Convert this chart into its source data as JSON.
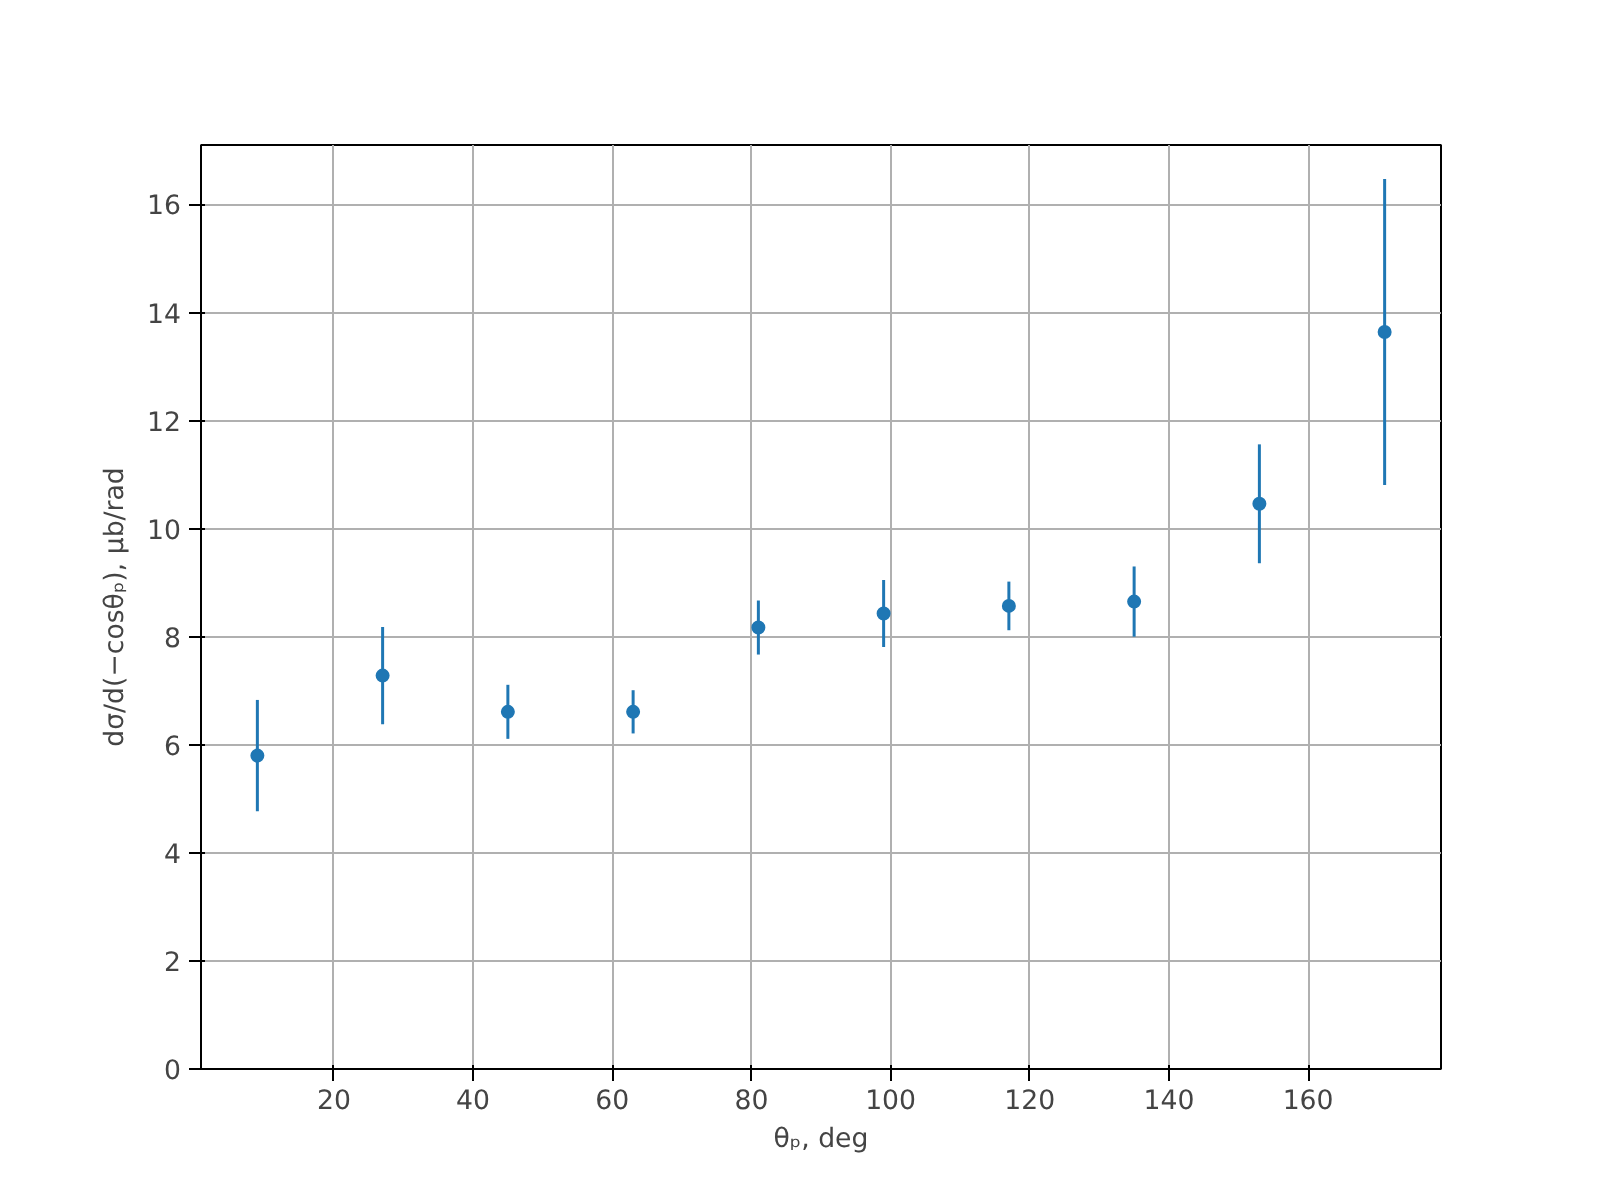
{
  "chart_data": {
    "type": "scatter",
    "xlabel": "θₚ, deg",
    "ylabel": "dσ/d(−cosθₚ), μb/rad",
    "x": [
      9,
      27,
      45,
      63,
      81,
      99,
      117,
      135,
      153,
      171
    ],
    "series": [
      {
        "color": "#1f77b4",
        "values": [
          5.8,
          7.28,
          6.61,
          6.61,
          8.17,
          8.43,
          8.57,
          8.65,
          10.46,
          13.64
        ],
        "errors": [
          1.03,
          0.9,
          0.5,
          0.4,
          0.5,
          0.62,
          0.45,
          0.65,
          1.1,
          2.83
        ]
      }
    ],
    "xlim": [
      0.9,
      179.1
    ],
    "ylim": [
      0,
      17.1
    ],
    "xticks": [
      20,
      40,
      60,
      80,
      100,
      120,
      140,
      160
    ],
    "yticks": [
      0,
      2,
      4,
      6,
      8,
      10,
      12,
      14,
      16
    ],
    "grid": true,
    "marker": "circle"
  }
}
